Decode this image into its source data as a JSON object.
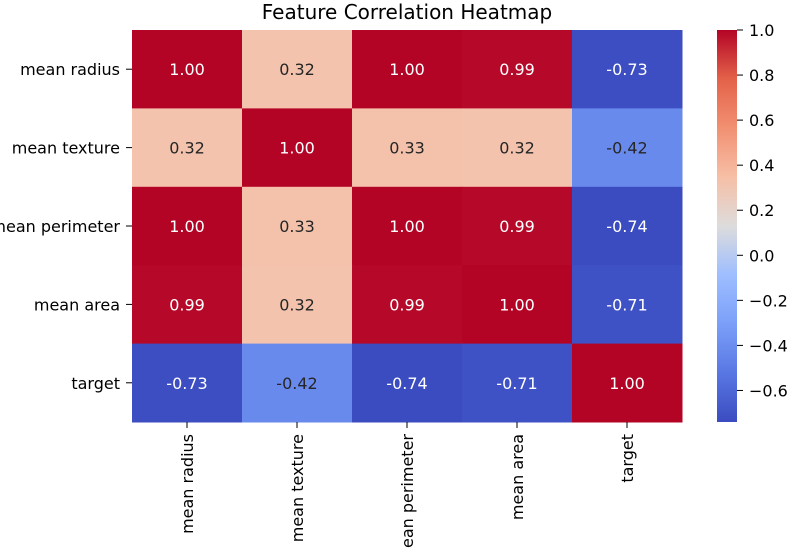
{
  "chart_data": {
    "type": "heatmap",
    "title": "Feature Correlation Heatmap",
    "xlabel": "",
    "ylabel": "",
    "x_categories": [
      "mean radius",
      "mean texture",
      "mean perimeter",
      "mean area",
      "target"
    ],
    "y_categories": [
      "mean radius",
      "mean texture",
      "mean perimeter",
      "mean area",
      "target"
    ],
    "values": [
      [
        1.0,
        0.32,
        1.0,
        0.99,
        -0.73
      ],
      [
        0.32,
        1.0,
        0.33,
        0.32,
        -0.42
      ],
      [
        1.0,
        0.33,
        1.0,
        0.99,
        -0.74
      ],
      [
        0.99,
        0.32,
        0.99,
        1.0,
        -0.71
      ],
      [
        -0.73,
        -0.42,
        -0.74,
        -0.71,
        1.0
      ]
    ],
    "cell_labels": [
      [
        "1.00",
        "0.32",
        "1.00",
        "0.99",
        "-0.73"
      ],
      [
        "0.32",
        "1.00",
        "0.33",
        "0.32",
        "-0.42"
      ],
      [
        "1.00",
        "0.33",
        "1.00",
        "0.99",
        "-0.74"
      ],
      [
        "0.99",
        "0.32",
        "0.99",
        "1.00",
        "-0.71"
      ],
      [
        "-0.73",
        "-0.42",
        "-0.74",
        "-0.71",
        "1.00"
      ]
    ],
    "colormap": "coolwarm",
    "colorbar": {
      "range": [
        -0.74,
        1.0
      ],
      "ticks": [
        1.0,
        0.8,
        0.6,
        0.4,
        0.2,
        0.0,
        -0.2,
        -0.4,
        -0.6
      ],
      "tick_labels": [
        "1.0",
        "0.8",
        "0.6",
        "0.4",
        "0.2",
        "0.0",
        "−0.2",
        "−0.4",
        "−0.6"
      ]
    },
    "grid": false
  }
}
